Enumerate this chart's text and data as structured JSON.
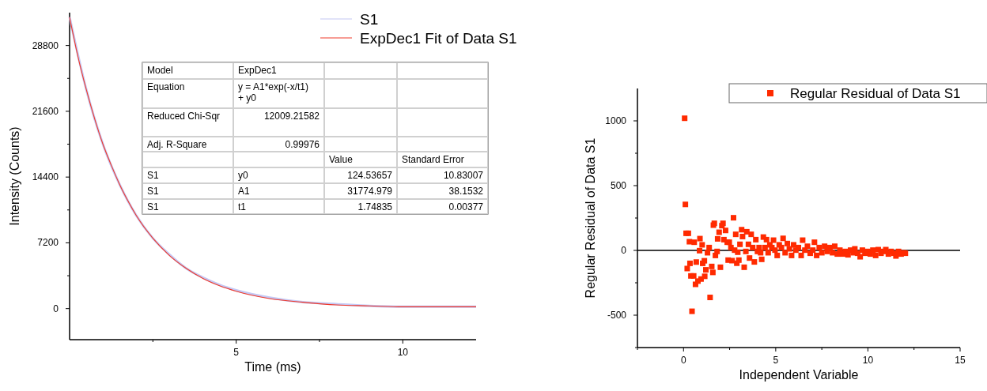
{
  "chart_data": [
    {
      "type": "line",
      "xlabel": "Time (ms)",
      "ylabel": "Intensity (Counts)",
      "xlim": [
        0,
        12.2
      ],
      "ylim": [
        -3400,
        32400
      ],
      "xticks": [
        {
          "value": 2.5,
          "label": null
        },
        5,
        {
          "value": 7.5,
          "label": null
        },
        10
      ],
      "yticks": [
        0,
        {
          "value": 3600,
          "label": null
        },
        7200,
        {
          "value": 10800,
          "label": null
        },
        14400,
        {
          "value": 18000,
          "label": null
        },
        21600,
        {
          "value": 25200,
          "label": null
        },
        28800
      ],
      "legend": "top right",
      "grid": false,
      "marker": "none",
      "line_style": "solid",
      "series": [
        {
          "name": "S1",
          "color": "#c4c8f4",
          "x": [
            0,
            0.5,
            1,
            1.5,
            2,
            2.5,
            3,
            3.5,
            4,
            4.5,
            5,
            6,
            7,
            8,
            9,
            10,
            11,
            12.2
          ],
          "values": [
            31900,
            24000,
            18000,
            13600,
            10200,
            7700,
            5900,
            4400,
            3400,
            2600,
            2000,
            1200,
            700,
            500,
            300,
            200,
            200,
            200
          ]
        },
        {
          "name": "ExpDec1 Fit of Data S1",
          "color": "#f03a2a",
          "x": [
            0,
            0.25,
            0.5,
            0.75,
            1,
            1.25,
            1.5,
            1.75,
            2,
            2.5,
            3,
            3.5,
            4,
            4.5,
            5,
            6,
            7,
            8,
            9,
            10,
            11,
            12.2
          ],
          "values": [
            31900,
            27600,
            24000,
            20800,
            18000,
            15700,
            13600,
            11800,
            10200,
            7700,
            5800,
            4400,
            3300,
            2500,
            1900,
            1100,
            700,
            400,
            300,
            200,
            200,
            200
          ]
        }
      ],
      "annotations": [
        "Model",
        "ExpDec1",
        null,
        null,
        "Equation",
        "y = A1*exp(-x/t1) + y0",
        null,
        null,
        "Reduced Chi-Sqr",
        "12009.21582",
        null,
        null,
        "Adj. R-Square",
        "0.99976",
        null,
        null,
        null,
        null,
        "Value",
        "Standard Error",
        "S1",
        "y0",
        "124.53657",
        "10.83007",
        "S1",
        "A1",
        "31774.979",
        "38.1532",
        "S1",
        "t1",
        "1.74835",
        "0.00377"
      ]
    },
    {
      "type": "scatter",
      "xlabel": "Independent Variable",
      "ylabel": "Regular Residual of Data S1",
      "xlim": [
        -2.5,
        15
      ],
      "ylim": [
        -750,
        1250
      ],
      "xticks": [
        {
          "value": -2.5,
          "label": null
        },
        0,
        {
          "value": 2.5,
          "label": null
        },
        5,
        {
          "value": 7.5,
          "label": null
        },
        10,
        {
          "value": 12.5,
          "label": null
        },
        15
      ],
      "yticks": [
        {
          "value": -750,
          "label": null
        },
        -500,
        {
          "value": -250,
          "label": null
        },
        0,
        {
          "value": 250,
          "label": null
        },
        500,
        {
          "value": 750,
          "label": null
        },
        1000
      ],
      "legend": "top right",
      "grid": false,
      "marker": "square",
      "ref_lines": [
        {
          "axis": "y",
          "value": 0,
          "color": "#000000"
        }
      ],
      "series": [
        {
          "name": "Regular Residual of Data S1",
          "color": "#ff2a00",
          "x": [
            0.06,
            0.1,
            0.14,
            0.26,
            0.2,
            0.32,
            0.35,
            0.4,
            0.46,
            0.55,
            0.58,
            0.65,
            0.69,
            0.78,
            0.87,
            0.89,
            0.95,
            1.01,
            1.04,
            1.13,
            1.15,
            1.21,
            1.3,
            1.39,
            1.44,
            1.53,
            1.59,
            1.62,
            1.67,
            1.73,
            1.82,
            1.85,
            1.93,
            2.0,
            2.08,
            2.14,
            2.19,
            2.28,
            2.37,
            2.42,
            2.48,
            2.57,
            2.63,
            2.71,
            2.77,
            2.83,
            2.89,
            2.94,
            3.0,
            3.06,
            3.15,
            3.2,
            3.29,
            3.38,
            3.43,
            3.52,
            3.58,
            3.67,
            3.75,
            3.84,
            3.92,
            4.01,
            4.1,
            4.18,
            4.24,
            4.33,
            4.42,
            4.5,
            4.59,
            4.68,
            4.79,
            4.88,
            4.96,
            5.08,
            5.19,
            5.31,
            5.4,
            5.51,
            5.63,
            5.74,
            5.86,
            5.97,
            6.09,
            6.23,
            6.38,
            6.46,
            6.58,
            6.72,
            6.87,
            7.01,
            7.1,
            7.22,
            7.36,
            7.5,
            7.65,
            7.79,
            7.94,
            8.08,
            8.2,
            8.34,
            8.48,
            8.63,
            8.77,
            8.92,
            9.06,
            9.21,
            9.29,
            9.44,
            9.58,
            9.7,
            9.84,
            9.99,
            10.13,
            10.27,
            10.42,
            10.56,
            10.71,
            10.85,
            10.97,
            11.11,
            11.26,
            11.4,
            11.52,
            11.66,
            11.8,
            11.95,
            12.03
          ],
          "values": [
            1020,
            355,
            132,
            132,
            -140,
            67,
            -100,
            -197,
            -470,
            -197,
            63,
            -262,
            -90,
            -237,
            -2,
            91,
            -221,
            43,
            -100,
            -80,
            -200,
            -150,
            -18,
            22,
            -363,
            -124,
            -170,
            195,
            209,
            -39,
            -8,
            89,
            140,
            -130,
            191,
            209,
            83,
            154,
            63,
            -75,
            63,
            22,
            -79,
            252,
            2,
            124,
            -99,
            -14,
            -75,
            47,
            160,
            107,
            -130,
            -8,
            144,
            47,
            -59,
            124,
            22,
            -89,
            83,
            -8,
            22,
            -18,
            -69,
            103,
            22,
            83,
            -18,
            43,
            22,
            79,
            2,
            -39,
            43,
            22,
            93,
            -18,
            53,
            12,
            -39,
            43,
            2,
            22,
            -39,
            79,
            2,
            32,
            -22,
            2,
            63,
            -39,
            22,
            -18,
            32,
            -8,
            22,
            -18,
            32,
            -28,
            2,
            -28,
            -8,
            -34,
            2,
            -18,
            12,
            -22,
            -49,
            2,
            -22,
            -8,
            -28,
            2,
            -39,
            6,
            -22,
            -8,
            6,
            -28,
            -8,
            -22,
            -43,
            -8,
            -28,
            -18,
            -22
          ]
        }
      ]
    }
  ]
}
